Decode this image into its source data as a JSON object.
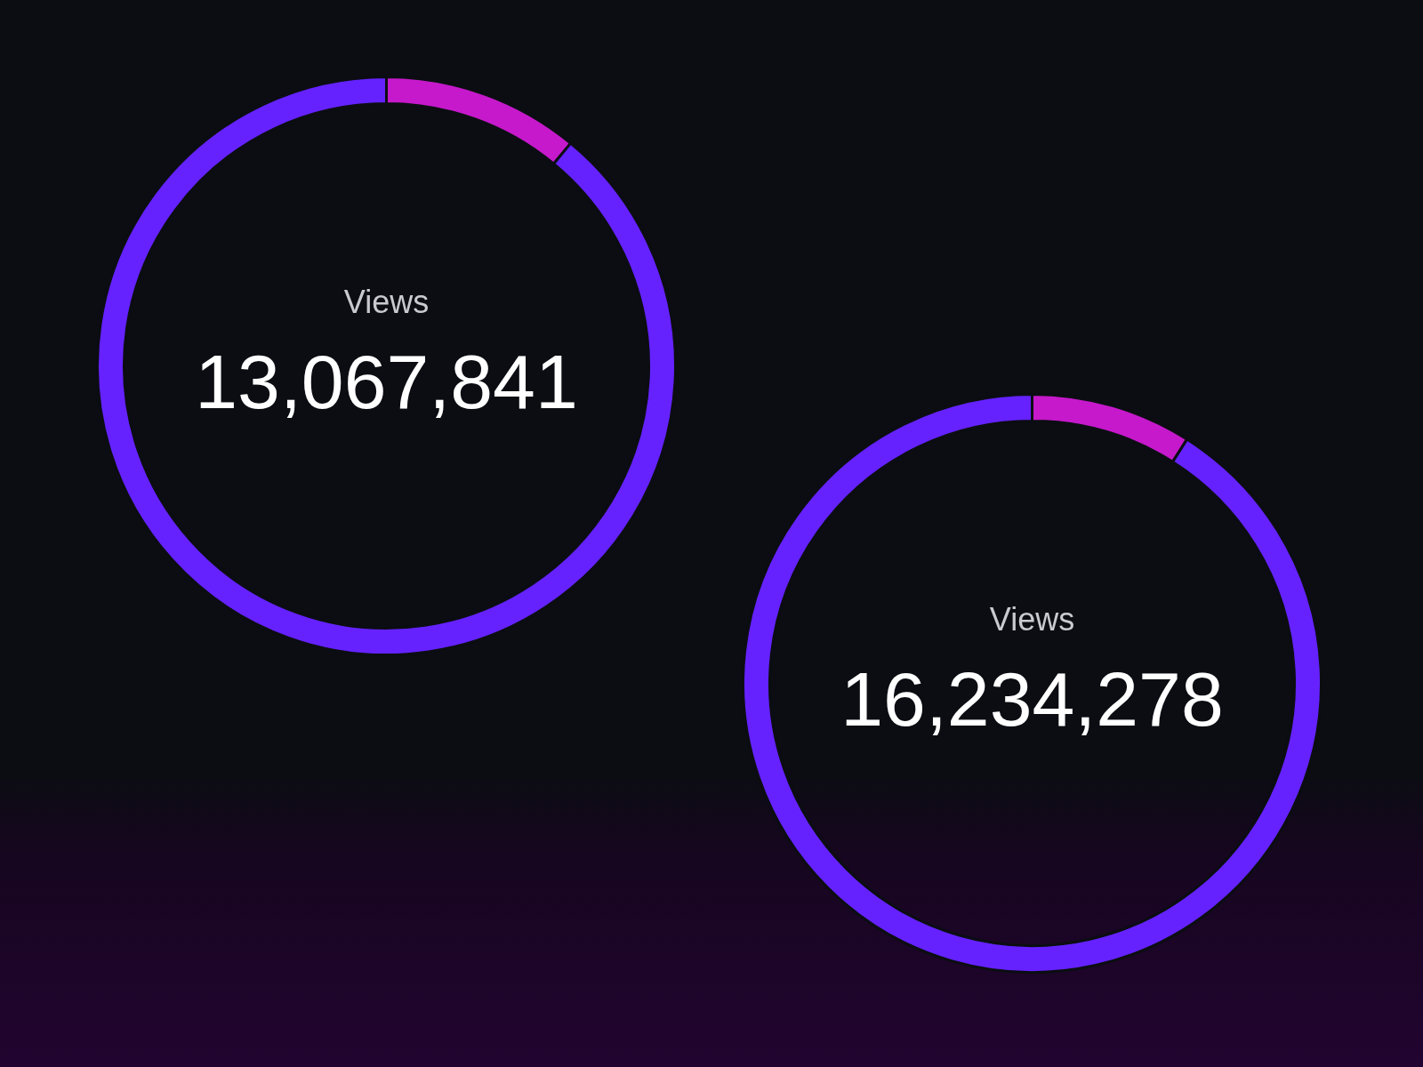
{
  "chart_data": [
    {
      "type": "donut",
      "title": "Views",
      "annotations": [
        "13,067,841"
      ],
      "categories": [
        null,
        null
      ],
      "values": [
        11,
        89
      ],
      "colors": [
        "#c619cb",
        "#6522ff"
      ]
    },
    {
      "type": "donut",
      "title": "Views",
      "annotations": [
        "16,234,278"
      ],
      "categories": [
        null,
        null
      ],
      "values": [
        9,
        91
      ],
      "colors": [
        "#c619cb",
        "#6522ff"
      ]
    }
  ]
}
